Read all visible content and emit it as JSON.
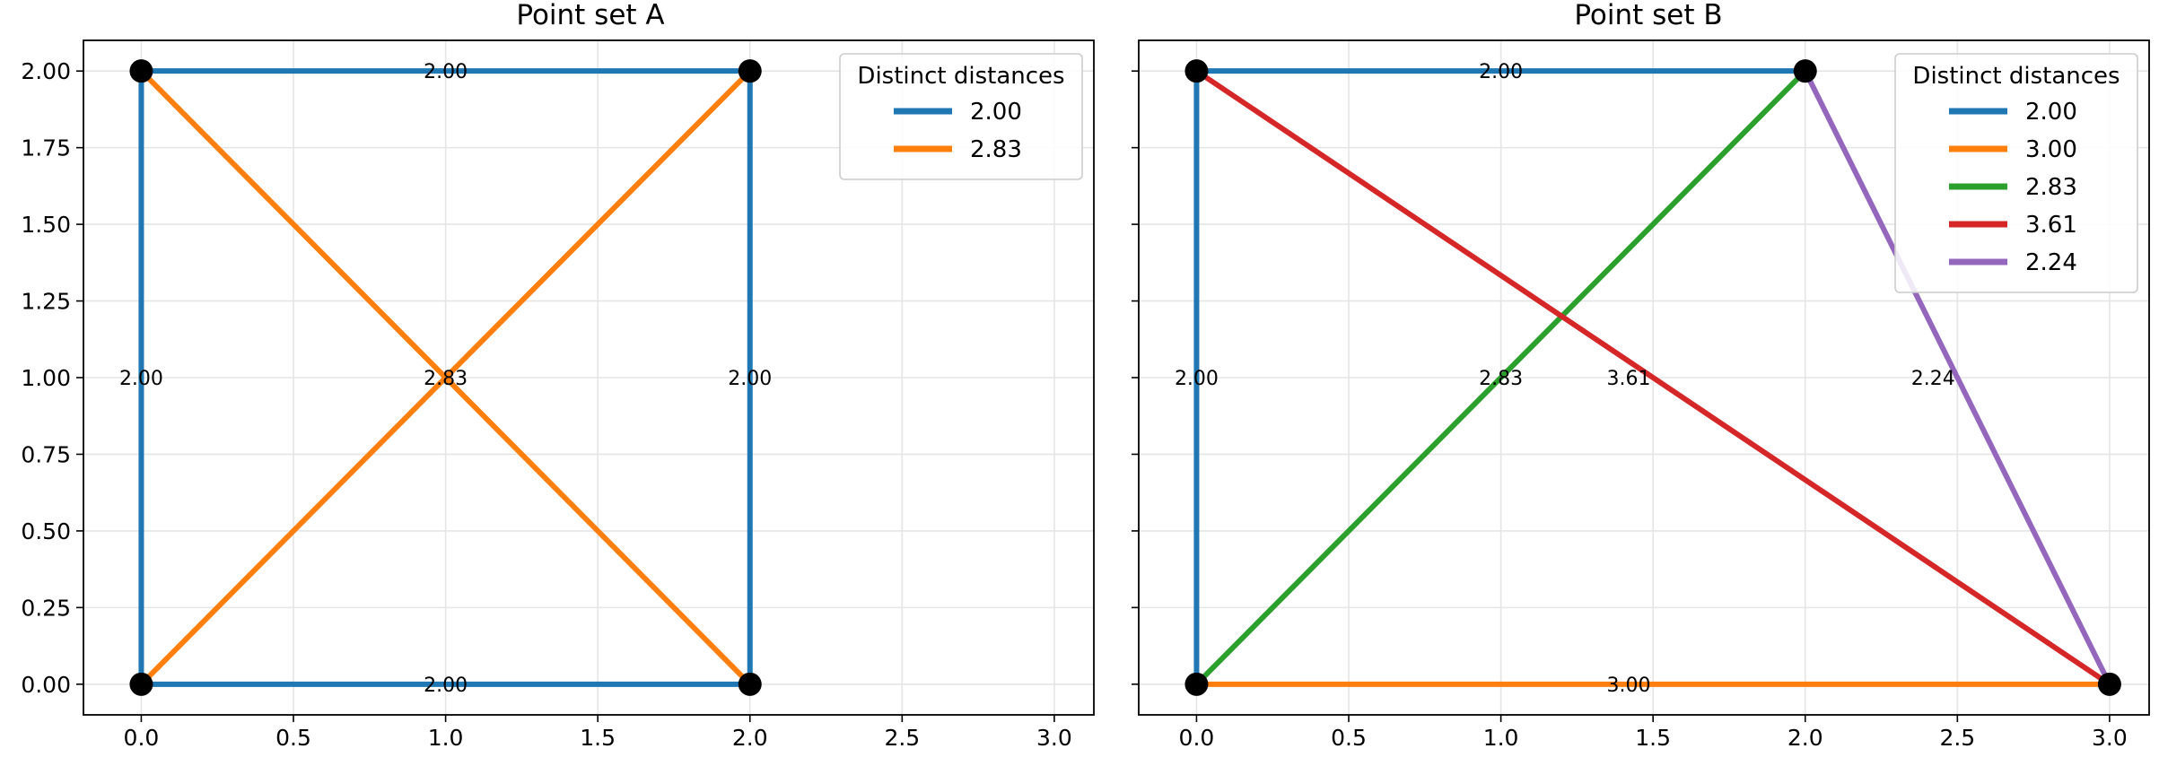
{
  "chart_data": [
    {
      "type": "line",
      "title": "Point set A",
      "xlabel": "",
      "ylabel": "",
      "xlim": [
        -0.19,
        3.13
      ],
      "ylim": [
        -0.1,
        2.1
      ],
      "xticks": [
        "0.0",
        "0.5",
        "1.0",
        "1.5",
        "2.0",
        "2.5",
        "3.0"
      ],
      "yticks": [
        "0.00",
        "0.25",
        "0.50",
        "0.75",
        "1.00",
        "1.25",
        "1.50",
        "1.75",
        "2.00"
      ],
      "grid": true,
      "show_ytick_labels": true,
      "legend": {
        "title": "Distinct distances",
        "placement": "upper-right"
      },
      "points": [
        [
          0,
          0
        ],
        [
          2,
          0
        ],
        [
          0,
          2
        ],
        [
          2,
          2
        ]
      ],
      "series": [
        {
          "name": "2.00",
          "color": "#1f77b4",
          "segments": [
            [
              [
                0,
                0
              ],
              [
                2,
                0
              ]
            ],
            [
              [
                0,
                0
              ],
              [
                0,
                2
              ]
            ],
            [
              [
                2,
                0
              ],
              [
                2,
                2
              ]
            ],
            [
              [
                0,
                2
              ],
              [
                2,
                2
              ]
            ]
          ]
        },
        {
          "name": "2.83",
          "color": "#ff7f0e",
          "segments": [
            [
              [
                0,
                0
              ],
              [
                2,
                2
              ]
            ],
            [
              [
                2,
                0
              ],
              [
                0,
                2
              ]
            ]
          ]
        }
      ],
      "edge_labels": [
        {
          "text": "2.00",
          "x": 1.0,
          "y": 0.0
        },
        {
          "text": "2.00",
          "x": 0.0,
          "y": 1.0
        },
        {
          "text": "2.00",
          "x": 2.0,
          "y": 1.0
        },
        {
          "text": "2.00",
          "x": 1.0,
          "y": 2.0
        },
        {
          "text": "2.83",
          "x": 1.0,
          "y": 1.0
        }
      ]
    },
    {
      "type": "line",
      "title": "Point set B",
      "xlabel": "",
      "ylabel": "",
      "xlim": [
        -0.19,
        3.13
      ],
      "ylim": [
        -0.1,
        2.1
      ],
      "xticks": [
        "0.0",
        "0.5",
        "1.0",
        "1.5",
        "2.0",
        "2.5",
        "3.0"
      ],
      "yticks": [
        "0.00",
        "0.25",
        "0.50",
        "0.75",
        "1.00",
        "1.25",
        "1.50",
        "1.75",
        "2.00"
      ],
      "grid": true,
      "show_ytick_labels": false,
      "legend": {
        "title": "Distinct distances",
        "placement": "upper-right"
      },
      "points": [
        [
          0,
          0
        ],
        [
          3,
          0
        ],
        [
          0,
          2
        ],
        [
          2,
          2
        ]
      ],
      "series": [
        {
          "name": "2.00",
          "color": "#1f77b4",
          "segments": [
            [
              [
                0,
                0
              ],
              [
                0,
                2
              ]
            ],
            [
              [
                0,
                2
              ],
              [
                2,
                2
              ]
            ]
          ]
        },
        {
          "name": "3.00",
          "color": "#ff7f0e",
          "segments": [
            [
              [
                0,
                0
              ],
              [
                3,
                0
              ]
            ]
          ]
        },
        {
          "name": "2.83",
          "color": "#2ca02c",
          "segments": [
            [
              [
                0,
                0
              ],
              [
                2,
                2
              ]
            ]
          ]
        },
        {
          "name": "3.61",
          "color": "#d62728",
          "segments": [
            [
              [
                0,
                2
              ],
              [
                3,
                0
              ]
            ]
          ]
        },
        {
          "name": "2.24",
          "color": "#9467bd",
          "segments": [
            [
              [
                3,
                0
              ],
              [
                2,
                2
              ]
            ]
          ]
        }
      ],
      "edge_labels": [
        {
          "text": "2.00",
          "x": 0.0,
          "y": 1.0
        },
        {
          "text": "2.00",
          "x": 1.0,
          "y": 2.0
        },
        {
          "text": "3.00",
          "x": 1.42,
          "y": 0.0
        },
        {
          "text": "2.83",
          "x": 1.0,
          "y": 1.0
        },
        {
          "text": "3.61",
          "x": 1.42,
          "y": 1.0
        },
        {
          "text": "2.24",
          "x": 2.42,
          "y": 1.0
        }
      ]
    }
  ]
}
